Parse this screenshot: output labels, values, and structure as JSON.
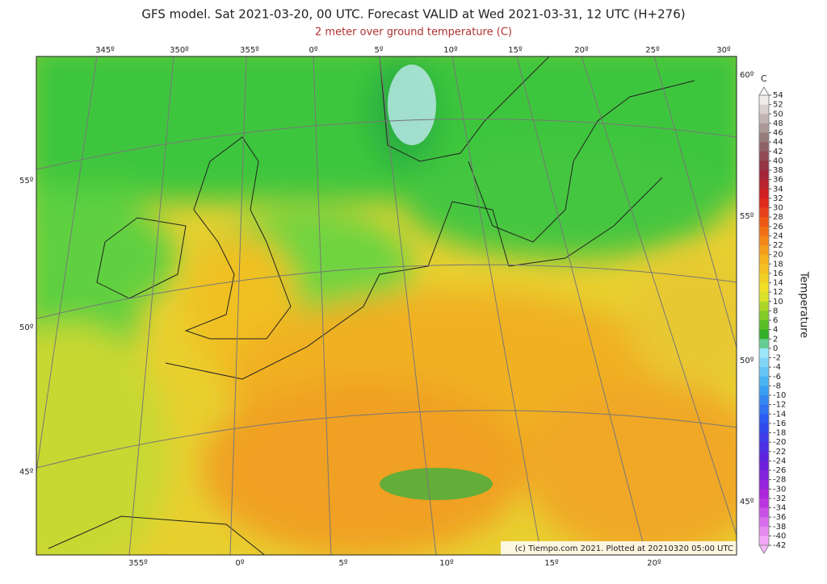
{
  "header": {
    "title": "GFS model. Sat 2021-03-20, 00 UTC. Forecast VALID at Wed 2021-03-31, 12 UTC (H+276)",
    "subtitle": "2 meter over ground temperature (C)"
  },
  "map": {
    "top_labels": [
      "345º",
      "350º",
      "355º",
      "0º",
      "5º",
      "10º",
      "15º",
      "20º",
      "25º",
      "30º"
    ],
    "bottom_labels": [
      "355º",
      "0º",
      "5º",
      "10º",
      "15º",
      "20º"
    ],
    "left_labels": [
      "55º",
      "50º",
      "45º"
    ],
    "right_labels": [
      "60º",
      "55º",
      "50º",
      "45º"
    ],
    "credit": "(c) Tiempo.com 2021. Plotted at 20210320 05:00 UTC"
  },
  "colorbar": {
    "unit": "C",
    "label": "Temperature",
    "ticks": [
      54,
      52,
      50,
      48,
      46,
      44,
      42,
      40,
      38,
      36,
      34,
      32,
      30,
      28,
      26,
      24,
      22,
      20,
      18,
      16,
      14,
      12,
      10,
      8,
      6,
      4,
      2,
      0,
      -2,
      -4,
      -6,
      -8,
      -10,
      -12,
      -14,
      -16,
      -18,
      -20,
      -22,
      -24,
      -26,
      -28,
      -30,
      -32,
      -34,
      -36,
      -38,
      -40,
      -42
    ]
  }
}
